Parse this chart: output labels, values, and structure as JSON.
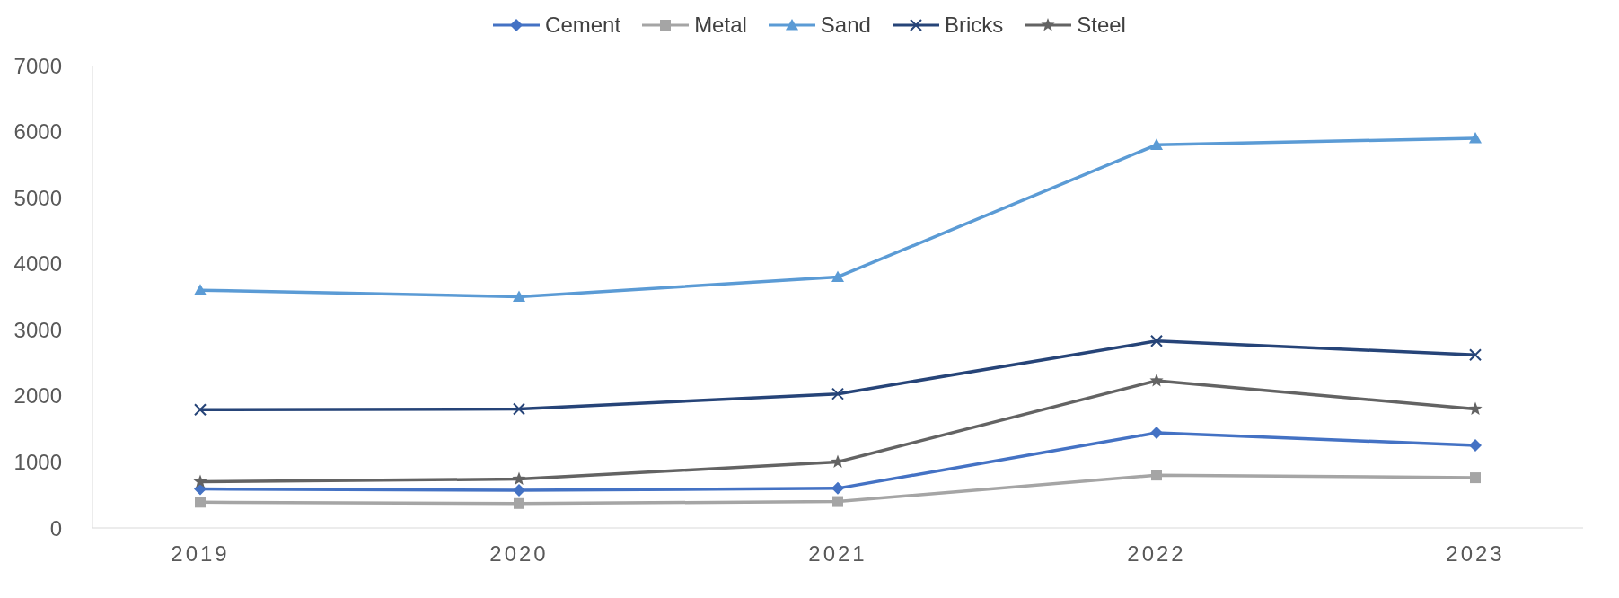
{
  "chart_data": {
    "type": "line",
    "categories": [
      "2019",
      "2020",
      "2021",
      "2022",
      "2023"
    ],
    "series": [
      {
        "name": "Cement",
        "color": "#4472c4",
        "marker": "diamond",
        "values": [
          590,
          570,
          600,
          1440,
          1250
        ]
      },
      {
        "name": "Metal",
        "color": "#a5a5a5",
        "marker": "square",
        "values": [
          390,
          370,
          400,
          800,
          760
        ]
      },
      {
        "name": "Sand",
        "color": "#5b9bd5",
        "marker": "triangle",
        "values": [
          3600,
          3500,
          3800,
          5800,
          5900
        ]
      },
      {
        "name": "Bricks",
        "color": "#264478",
        "marker": "cross",
        "values": [
          1790,
          1800,
          2030,
          2830,
          2620
        ]
      },
      {
        "name": "Steel",
        "color": "#636363",
        "marker": "star",
        "values": [
          700,
          740,
          1000,
          2230,
          1800
        ]
      }
    ],
    "ylim": [
      0,
      7000
    ],
    "yticks": [
      0,
      1000,
      2000,
      3000,
      4000,
      5000,
      6000,
      7000
    ],
    "grid": false,
    "legend": "top",
    "line_style": "solid"
  }
}
